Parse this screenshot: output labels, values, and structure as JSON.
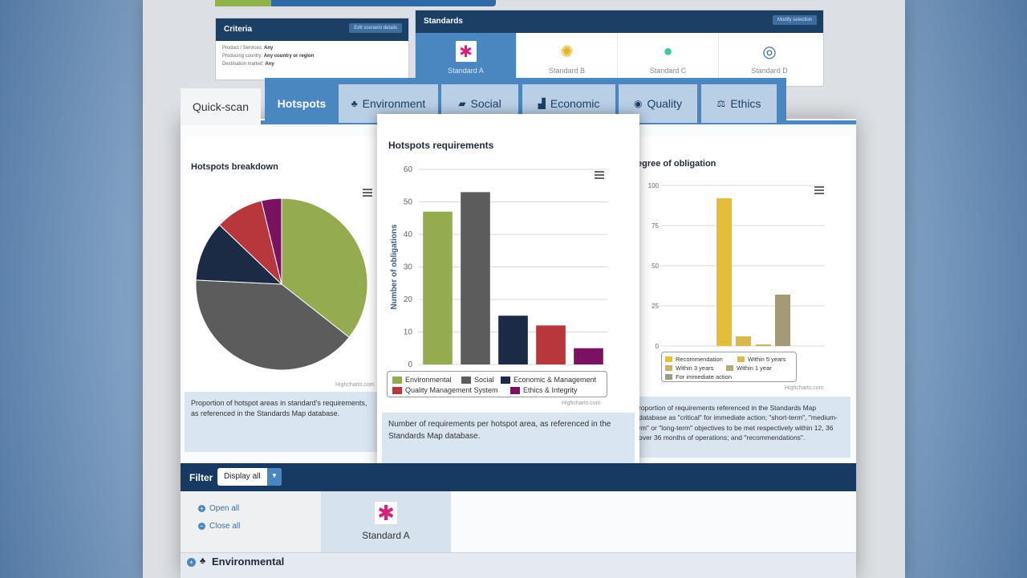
{
  "back": {
    "criteria": {
      "title": "Criteria",
      "button": "Edit scenario details",
      "rows": [
        {
          "label": "Product / Services:",
          "value": "Any"
        },
        {
          "label": "Producing country:",
          "value": "Any country or region"
        },
        {
          "label": "Destination market:",
          "value": "Any"
        }
      ]
    },
    "standards": {
      "title": "Standards",
      "button": "Modify selection",
      "items": [
        {
          "label": "Standard A",
          "color": "#d9207a"
        },
        {
          "label": "Standard B",
          "color": "#e3b42a"
        },
        {
          "label": "Standard C",
          "color": "#3cc9a5"
        },
        {
          "label": "Standard D",
          "color": "#2e6aa6"
        }
      ]
    }
  },
  "tabs": [
    {
      "label": "Quick-scan",
      "icon": ""
    },
    {
      "label": "Hotspots",
      "icon": ""
    },
    {
      "label": "Environment",
      "icon": "tree-icon"
    },
    {
      "label": "Social",
      "icon": "handshake-icon"
    },
    {
      "label": "Economic",
      "icon": "bar-chart-icon"
    },
    {
      "label": "Quality",
      "icon": "badge-icon"
    },
    {
      "label": "Ethics",
      "icon": "scales-icon"
    }
  ],
  "left_card": {
    "title": "Hotspots breakdown",
    "credit": "Highcharts.com",
    "description": "Proportion of hotspot areas in standard's requirements, as referenced in the Standards Map database."
  },
  "center_card": {
    "title": "Hotspots requirements",
    "credit": "Highcharts.com",
    "description": "Number of requirements per hotspot area, as referenced in the Standards Map database."
  },
  "right_card": {
    "title": "egree of obligation",
    "credit": "Highcharts.com",
    "description": "roportion of requirements referenced in the Standards Map database as \"critical\" for immediate action; \"short-term\", \"medium-rm\" or \"long-term\" objectives to be met respectively within 12, 36 over 36 months of operations; and \"recommendations\"."
  },
  "filter": {
    "label": "Filter",
    "selected": "Display all",
    "open_all": "Open all",
    "close_all": "Close all",
    "standard": "Standard A"
  },
  "section": {
    "label": "Environmental"
  },
  "chart_data": [
    {
      "type": "pie",
      "title": "Hotspots breakdown",
      "slices": [
        {
          "name": "Environmental",
          "value": 47,
          "color": "#95ab4f"
        },
        {
          "name": "Social",
          "value": 53,
          "color": "#5c5c5c"
        },
        {
          "name": "Economic & Management",
          "value": 15,
          "color": "#1c2b45"
        },
        {
          "name": "Quality Management System",
          "value": 12,
          "color": "#b8373d"
        },
        {
          "name": "Ethics & Integrity",
          "value": 5,
          "color": "#7b1261"
        }
      ]
    },
    {
      "type": "bar",
      "title": "Hotspots requirements",
      "ylabel": "Number of obligations",
      "ylim": [
        0,
        60
      ],
      "yticks": [
        0,
        10,
        20,
        30,
        40,
        50,
        60
      ],
      "categories": [
        "Environmental",
        "Social",
        "Economic & Management",
        "Quality Management System",
        "Ethics & Integrity"
      ],
      "values": [
        47,
        53,
        15,
        12,
        5
      ],
      "colors": [
        "#95ab4f",
        "#5c5c5c",
        "#1c2b45",
        "#b8373d",
        "#7b1261"
      ],
      "legend": [
        {
          "name": "Environmental",
          "color": "#95ab4f"
        },
        {
          "name": "Social",
          "color": "#5c5c5c"
        },
        {
          "name": "Economic & Management",
          "color": "#1c2b45"
        },
        {
          "name": "Quality Management System",
          "color": "#b8373d"
        },
        {
          "name": "Ethics & Integrity",
          "color": "#7b1261"
        }
      ]
    },
    {
      "type": "bar",
      "title": "egree of obligation",
      "ylim": [
        0,
        100
      ],
      "yticks": [
        0,
        25,
        50,
        75,
        100
      ],
      "categories": [
        "Recommendation",
        "Within 5 years",
        "Within 3 years",
        "Within 1 year",
        "For immediate action"
      ],
      "values": [
        92,
        6,
        1,
        0,
        32
      ],
      "colors": [
        "#e3be36",
        "#d8b84a",
        "#c9b46a",
        "#b8aa76",
        "#a59a78"
      ],
      "legend": [
        {
          "name": "Recommendation",
          "color": "#e8c12e"
        },
        {
          "name": "Within 5 years",
          "color": "#d9b94a"
        },
        {
          "name": "Within 3 years",
          "color": "#c9b36a"
        },
        {
          "name": "Within 1 year",
          "color": "#b8a878"
        },
        {
          "name": "For immediate action",
          "color": "#a09a82"
        }
      ]
    }
  ]
}
